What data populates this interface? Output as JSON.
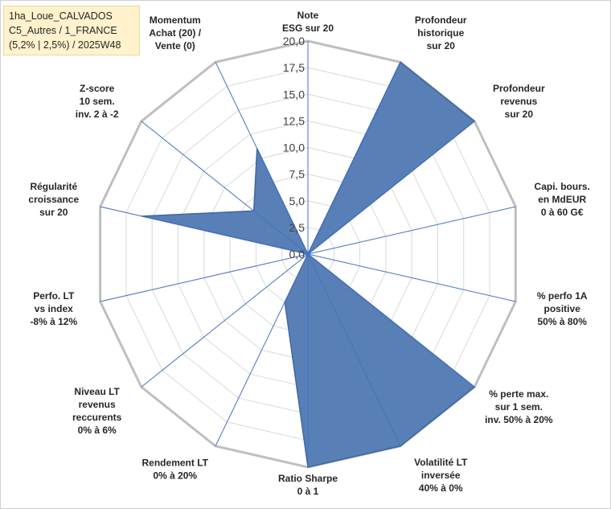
{
  "info_box": {
    "line1": "1ha_Loue_CALVADOS",
    "line2": "C5_Autres / 1_FRANCE",
    "line3": "(5,2% | 2,5%) / 2025W48"
  },
  "colors": {
    "fill": "#4f79b3",
    "stroke": "#3f67a3",
    "grid": "#d9d9d9",
    "outer_grid": "#bfbfbf",
    "spoke": "#4472c4"
  },
  "chart_data": {
    "type": "radar",
    "r_range": [
      0,
      20
    ],
    "r_ticks": [
      "0,0",
      "2,5",
      "5,0",
      "7,5",
      "10,0",
      "12,5",
      "15,0",
      "17,5",
      "20,0"
    ],
    "grid": true,
    "axes": [
      {
        "lines": [
          "Note",
          "ESG sur 20"
        ]
      },
      {
        "lines": [
          "Profondeur",
          "historique",
          "sur 20"
        ]
      },
      {
        "lines": [
          "Profondeur",
          "revenus",
          "sur 20"
        ]
      },
      {
        "lines": [
          "Capi. bours.",
          "en MdEUR",
          "0 à 60 G€"
        ]
      },
      {
        "lines": [
          "% perfo 1A",
          "positive",
          "50% à 80%"
        ]
      },
      {
        "lines": [
          "% perte max.",
          "sur 1 sem.",
          "inv. 50% à 20%"
        ]
      },
      {
        "lines": [
          "Volatilité LT",
          "inversée",
          "40% à 0%"
        ]
      },
      {
        "lines": [
          "Ratio Sharpe",
          "0 à 1"
        ]
      },
      {
        "lines": [
          "Rendement LT",
          "0% à 20%"
        ]
      },
      {
        "lines": [
          "Niveau LT",
          "revenus",
          "reccurents",
          "0% à 6%"
        ]
      },
      {
        "lines": [
          "Perfo. LT",
          "vs index",
          "-8% à 12%"
        ]
      },
      {
        "lines": [
          "Régularité",
          "croissance",
          "sur 20"
        ]
      },
      {
        "lines": [
          "Z-score",
          "10 sem.",
          "inv. 2 à -2"
        ]
      },
      {
        "lines": [
          "Momentum",
          "Achat (20) /",
          "Vente (0)"
        ]
      }
    ],
    "series": [
      {
        "values": [
          0,
          20,
          20,
          0,
          0,
          20,
          20,
          20,
          5,
          0,
          0,
          16,
          6.5,
          11
        ]
      }
    ]
  }
}
